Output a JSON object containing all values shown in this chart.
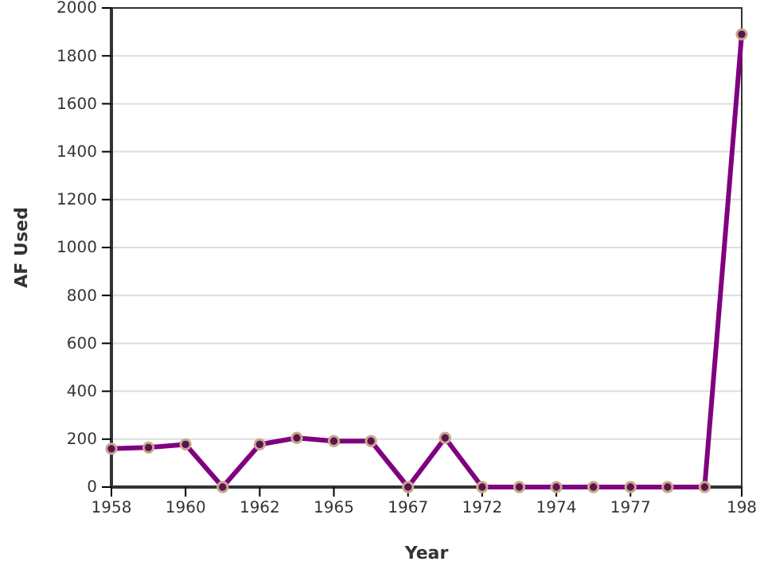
{
  "chart_data": {
    "type": "line",
    "xlabel": "Year",
    "ylabel": "AF Used",
    "categories": [
      "1958",
      null,
      "1960",
      null,
      "1962",
      null,
      "1965",
      null,
      "1967",
      null,
      "1972",
      null,
      "1974",
      null,
      "1977",
      null,
      null,
      "198"
    ],
    "series": [
      {
        "color": "#800080",
        "values": [
          160,
          165,
          178,
          0,
          178,
          205,
          192,
          192,
          0,
          205,
          0,
          0,
          0,
          0,
          0,
          0,
          0,
          1890
        ]
      }
    ],
    "ylim": [
      0,
      2000
    ],
    "yticks": [
      0,
      200,
      400,
      600,
      800,
      1000,
      1200,
      1400,
      1600,
      1800,
      2000
    ],
    "grid": "y",
    "marker": "circle",
    "line_style": "solid"
  }
}
